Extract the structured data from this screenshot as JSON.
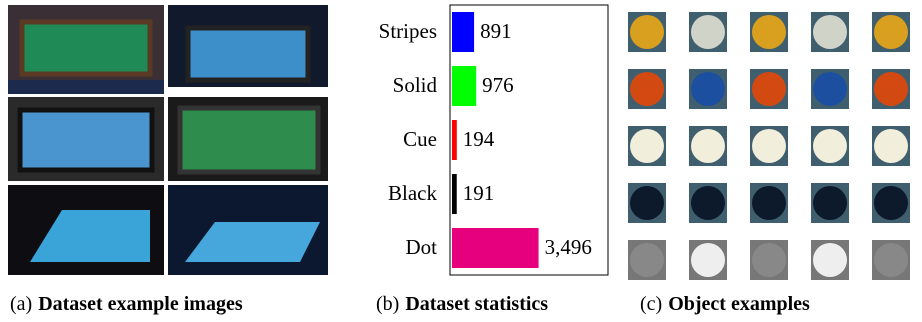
{
  "chart_data": {
    "type": "bar",
    "orientation": "horizontal",
    "categories": [
      "Stripes",
      "Solid",
      "Cue",
      "Black",
      "Dot"
    ],
    "values": [
      891,
      976,
      194,
      191,
      3496
    ],
    "value_labels": [
      "891",
      "976",
      "194",
      "191",
      "3,496"
    ],
    "colors": [
      "#0000ff",
      "#00ff00",
      "#ff0000",
      "#000000",
      "#e6007e"
    ],
    "xlim": [
      0,
      6300
    ]
  },
  "captions": [
    {
      "label": "(a)",
      "text": "Dataset example images"
    },
    {
      "label": "(b)",
      "text": "Dataset statistics"
    },
    {
      "label": "(c)",
      "text": "Object examples"
    }
  ]
}
